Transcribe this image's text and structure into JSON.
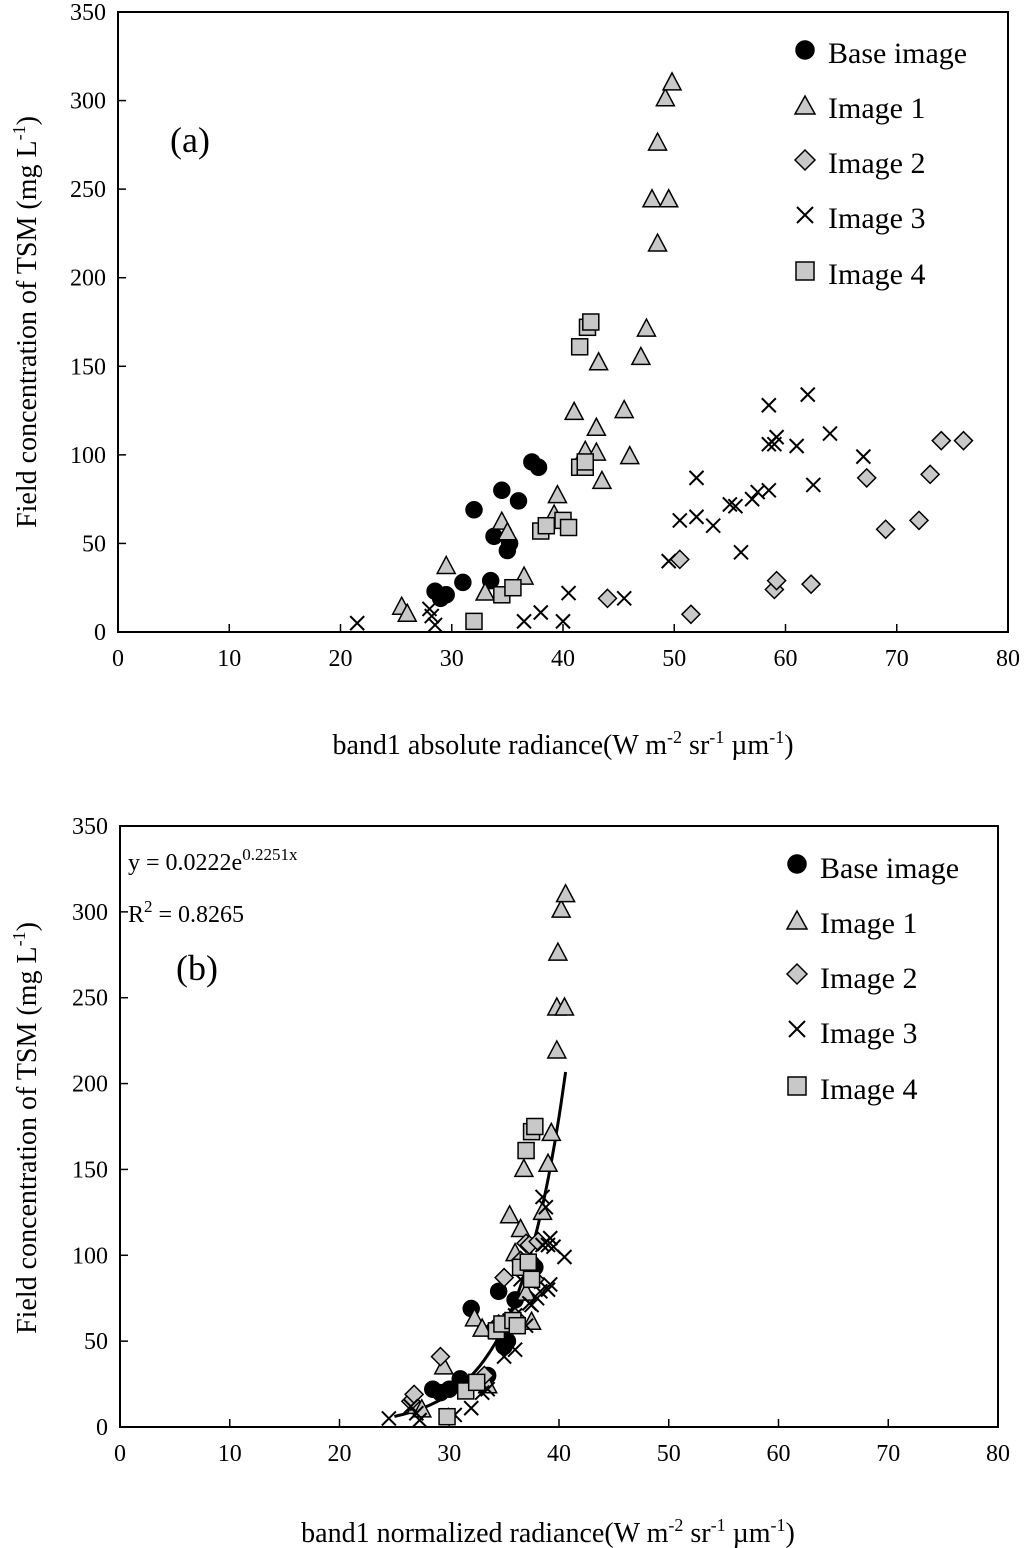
{
  "figure": {
    "legend_labels": [
      "Base image",
      "Image 1",
      "Image 2",
      "Image 3",
      "Image 4"
    ]
  },
  "chart_data": [
    {
      "type": "scatter",
      "panel_label": "(a)",
      "xlabel_main": "band1 absolute radiance(W m",
      "xlabel_exp1": "-2",
      "xlabel_mid1": " sr",
      "xlabel_exp2": "-1",
      "xlabel_mid2": " µm",
      "xlabel_exp3": "-1",
      "xlabel_end": ")",
      "ylabel_main": "Field concentration of TSM (mg L",
      "ylabel_exp": "-1",
      "ylabel_end": ")",
      "xlim": [
        0,
        80
      ],
      "ylim": [
        0,
        350
      ],
      "xticks": [
        0,
        10,
        20,
        30,
        40,
        50,
        60,
        70,
        80
      ],
      "yticks": [
        0,
        50,
        100,
        150,
        200,
        250,
        300,
        350
      ],
      "legend": [
        "Base image",
        "Image 1",
        "Image 2",
        "Image 3",
        "Image 4"
      ],
      "series": [
        {
          "name": "Base image",
          "marker": "circle",
          "points": [
            [
              28.5,
              23
            ],
            [
              29,
              19
            ],
            [
              29.5,
              21
            ],
            [
              31,
              28
            ],
            [
              32,
              69
            ],
            [
              33.5,
              29
            ],
            [
              33.8,
              54
            ],
            [
              34.5,
              80
            ],
            [
              35,
              46
            ],
            [
              35.2,
              50
            ],
            [
              36,
              74
            ],
            [
              37.2,
              96
            ],
            [
              37.8,
              93
            ]
          ]
        },
        {
          "name": "Image 1",
          "marker": "triangle",
          "points": [
            [
              25.5,
              14
            ],
            [
              26,
              10
            ],
            [
              29.5,
              37
            ],
            [
              33,
              22
            ],
            [
              34.5,
              62
            ],
            [
              35,
              56
            ],
            [
              36.5,
              31
            ],
            [
              39.5,
              77
            ],
            [
              39.2,
              66
            ],
            [
              41,
              124
            ],
            [
              42,
              102
            ],
            [
              43,
              115
            ],
            [
              43,
              101
            ],
            [
              43.2,
              152
            ],
            [
              43.5,
              85
            ],
            [
              45.5,
              125
            ],
            [
              46,
              99
            ],
            [
              47,
              155
            ],
            [
              47.5,
              171
            ],
            [
              48,
              244
            ],
            [
              48.5,
              219
            ],
            [
              48.5,
              276
            ],
            [
              49.2,
              301
            ],
            [
              49.5,
              244
            ],
            [
              49.8,
              310
            ]
          ]
        },
        {
          "name": "Image 2",
          "marker": "diamond",
          "points": [
            [
              44,
              19
            ],
            [
              50.5,
              41
            ],
            [
              51.5,
              10
            ],
            [
              59,
              24
            ],
            [
              59.2,
              29
            ],
            [
              62.3,
              27
            ],
            [
              67.3,
              87
            ],
            [
              69,
              58
            ],
            [
              72,
              63
            ],
            [
              73,
              89
            ],
            [
              74,
              108
            ],
            [
              76,
              108
            ]
          ]
        },
        {
          "name": "Image 3",
          "marker": "x",
          "points": [
            [
              21.5,
              5
            ],
            [
              28,
              13
            ],
            [
              28.2,
              9
            ],
            [
              28.5,
              4
            ],
            [
              36.5,
              6
            ],
            [
              38,
              11
            ],
            [
              40,
              6
            ],
            [
              40.5,
              22
            ],
            [
              45.5,
              19
            ],
            [
              49.5,
              40
            ],
            [
              50.5,
              63
            ],
            [
              52,
              65
            ],
            [
              52,
              87
            ],
            [
              53.5,
              60
            ],
            [
              55,
              72
            ],
            [
              55.5,
              71
            ],
            [
              56,
              45
            ],
            [
              57,
              75
            ],
            [
              57.5,
              79
            ],
            [
              58.5,
              80
            ],
            [
              58.5,
              106
            ],
            [
              58.5,
              128
            ],
            [
              59,
              106
            ],
            [
              59.2,
              110
            ],
            [
              61,
              105
            ],
            [
              62,
              134
            ],
            [
              62.5,
              83
            ],
            [
              64,
              112
            ],
            [
              67,
              99
            ]
          ]
        },
        {
          "name": "Image 4",
          "marker": "square",
          "points": [
            [
              32,
              6
            ],
            [
              34.5,
              21
            ],
            [
              35.5,
              25
            ],
            [
              38,
              57
            ],
            [
              38.5,
              60
            ],
            [
              40,
              63
            ],
            [
              40.5,
              59
            ],
            [
              41.5,
              93
            ],
            [
              42,
              93
            ],
            [
              42,
              96
            ],
            [
              41.5,
              161
            ],
            [
              42.2,
              172
            ],
            [
              42.5,
              175
            ]
          ]
        }
      ]
    },
    {
      "type": "scatter",
      "panel_label": "(b)",
      "xlabel_main": "band1 normalized radiance(W m",
      "xlabel_exp1": "-2",
      "xlabel_mid1": " sr",
      "xlabel_exp2": "-1",
      "xlabel_mid2": " µm",
      "xlabel_exp3": "-1",
      "xlabel_end": ")",
      "ylabel_main": "Field concentration of TSM (mg L",
      "ylabel_exp": "-1",
      "ylabel_end": ")",
      "equation_main": "y = 0.0222e",
      "equation_exp": "0.2251x",
      "r2_prefix": "R",
      "r2_exp": "2",
      "r2_value": " = 0.8265",
      "trendline": {
        "type": "exponential",
        "a": 0.0222,
        "b": 0.2251,
        "x_range": [
          25,
          40.6
        ]
      },
      "xlim": [
        0,
        80
      ],
      "ylim": [
        0,
        350
      ],
      "xticks": [
        0,
        10,
        20,
        30,
        40,
        50,
        60,
        70,
        80
      ],
      "yticks": [
        0,
        50,
        100,
        150,
        200,
        250,
        300,
        350
      ],
      "legend": [
        "Base image",
        "Image 1",
        "Image 2",
        "Image 3",
        "Image 4"
      ],
      "series": [
        {
          "name": "Base image",
          "marker": "circle",
          "points": [
            [
              28.5,
              22
            ],
            [
              29.2,
              20
            ],
            [
              30,
              22
            ],
            [
              31,
              28
            ],
            [
              32,
              69
            ],
            [
              33.5,
              30
            ],
            [
              34,
              56
            ],
            [
              34.5,
              79
            ],
            [
              35,
              47
            ],
            [
              35.3,
              50
            ],
            [
              36,
              74
            ],
            [
              37.5,
              95
            ],
            [
              37.8,
              93
            ]
          ]
        },
        {
          "name": "Image 1",
          "marker": "triangle",
          "points": [
            [
              27,
              12
            ],
            [
              27.5,
              10
            ],
            [
              29.5,
              35
            ],
            [
              32.3,
              63
            ],
            [
              33,
              57
            ],
            [
              33.5,
              24
            ],
            [
              35.5,
              123
            ],
            [
              36,
              101
            ],
            [
              36.5,
              115
            ],
            [
              36.8,
              150
            ],
            [
              37,
              78
            ],
            [
              37.5,
              61
            ],
            [
              38.5,
              125
            ],
            [
              39,
              153
            ],
            [
              39.3,
              171
            ],
            [
              39.8,
              219
            ],
            [
              39.8,
              244
            ],
            [
              39.9,
              276
            ],
            [
              40.2,
              301
            ],
            [
              40.5,
              244
            ],
            [
              40.6,
              310
            ]
          ]
        },
        {
          "name": "Image 2",
          "marker": "diamond",
          "points": [
            [
              26.5,
              15
            ],
            [
              26.8,
              19
            ],
            [
              29.2,
              41
            ],
            [
              33.2,
              30
            ],
            [
              34.5,
              60
            ],
            [
              35,
              87
            ],
            [
              36,
              64
            ],
            [
              36.5,
              97
            ],
            [
              37,
              107
            ],
            [
              37.3,
              106
            ],
            [
              37.8,
              86
            ],
            [
              38.1,
              108
            ]
          ]
        },
        {
          "name": "Image 3",
          "marker": "x",
          "points": [
            [
              24.5,
              5
            ],
            [
              26.5,
              12
            ],
            [
              27,
              8
            ],
            [
              27.3,
              4
            ],
            [
              30.5,
              7
            ],
            [
              32,
              11
            ],
            [
              33,
              20
            ],
            [
              33.5,
              22
            ],
            [
              35,
              41
            ],
            [
              35.5,
              62
            ],
            [
              36,
              45
            ],
            [
              36,
              65
            ],
            [
              36.5,
              86
            ],
            [
              37,
              59
            ],
            [
              37.3,
              72
            ],
            [
              37.5,
              71
            ],
            [
              38,
              75
            ],
            [
              38.3,
              79
            ],
            [
              38.5,
              106
            ],
            [
              38.8,
              128
            ],
            [
              39,
              106
            ],
            [
              39,
              80
            ],
            [
              39.2,
              110
            ],
            [
              39.5,
              105
            ],
            [
              38.5,
              134
            ],
            [
              39.2,
              83
            ],
            [
              40.5,
              99
            ]
          ]
        },
        {
          "name": "Image 4",
          "marker": "square",
          "points": [
            [
              29.8,
              6
            ],
            [
              31.5,
              21
            ],
            [
              32.5,
              26
            ],
            [
              34.3,
              56
            ],
            [
              34.8,
              60
            ],
            [
              35.8,
              62
            ],
            [
              36.2,
              59
            ],
            [
              36.5,
              93
            ],
            [
              37.2,
              96
            ],
            [
              37.5,
              86
            ],
            [
              37,
              161
            ],
            [
              37.5,
              172
            ],
            [
              37.8,
              175
            ]
          ]
        }
      ]
    }
  ]
}
